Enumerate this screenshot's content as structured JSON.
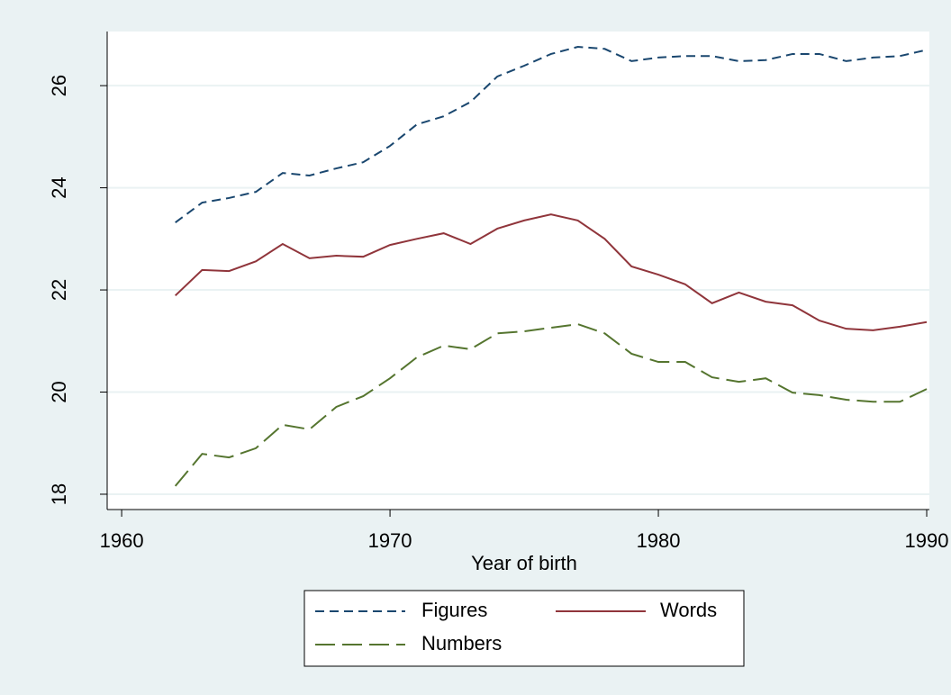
{
  "chart_data": {
    "type": "line",
    "x": [
      1962,
      1963,
      1964,
      1965,
      1966,
      1967,
      1968,
      1969,
      1970,
      1971,
      1972,
      1973,
      1974,
      1975,
      1976,
      1977,
      1978,
      1979,
      1980,
      1981,
      1982,
      1983,
      1984,
      1985,
      1986,
      1987,
      1988,
      1989,
      1990
    ],
    "series": [
      {
        "name": "Figures",
        "color": "#1a476f",
        "dash": "dashed",
        "values": [
          23.32,
          23.71,
          23.8,
          23.92,
          24.29,
          24.24,
          24.38,
          24.5,
          24.82,
          25.24,
          25.4,
          25.68,
          26.18,
          26.39,
          26.62,
          26.76,
          26.72,
          26.48,
          26.55,
          26.58,
          26.58,
          26.48,
          26.5,
          26.62,
          26.62,
          26.48,
          26.55,
          26.58,
          26.7
        ]
      },
      {
        "name": "Words",
        "color": "#90353b",
        "dash": "solid",
        "values": [
          21.89,
          22.39,
          22.37,
          22.56,
          22.9,
          22.62,
          22.67,
          22.65,
          22.88,
          23.0,
          23.11,
          22.9,
          23.2,
          23.36,
          23.48,
          23.36,
          23.0,
          22.46,
          22.3,
          22.11,
          21.74,
          21.95,
          21.77,
          21.7,
          21.4,
          21.24,
          21.21,
          21.28,
          21.37
        ]
      },
      {
        "name": "Numbers",
        "color": "#55752f",
        "dash": "longdash",
        "values": [
          18.16,
          18.79,
          18.72,
          18.9,
          19.36,
          19.27,
          19.71,
          19.92,
          20.27,
          20.68,
          20.91,
          20.84,
          21.15,
          21.19,
          21.26,
          21.33,
          21.15,
          20.75,
          20.59,
          20.59,
          20.29,
          20.2,
          20.27,
          19.99,
          19.94,
          19.85,
          19.81,
          19.81,
          20.06
        ]
      }
    ],
    "x_label": "Year of birth",
    "xlim": [
      1959.46,
      1990.1
    ],
    "xticks": [
      1960,
      1970,
      1980,
      1990
    ],
    "ylim": [
      17.7,
      27.06
    ],
    "yticks": [
      18,
      20,
      22,
      24,
      26
    ],
    "grid": true,
    "legend": "bottom"
  }
}
